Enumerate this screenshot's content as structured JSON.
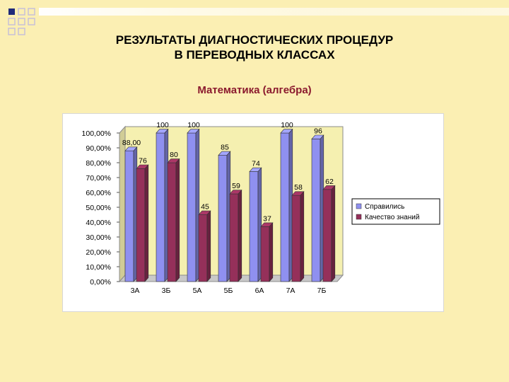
{
  "title_line1": "РЕЗУЛЬТАТЫ   ДИАГНОСТИЧЕСКИХ   ПРОЦЕДУР",
  "title_line2": "В ПЕРЕВОДНЫХ КЛАССАХ",
  "subtitle": "Математика (алгебра)",
  "colors": {
    "background": "#fbefb3",
    "plot_area": "#f5f0b0",
    "series1": "#8f90f0",
    "series2": "#95305a",
    "subtitle": "#8b1a2e",
    "corner_squares": "#1f2a7a"
  },
  "chart_data": {
    "type": "bar",
    "categories": [
      "3А",
      "3Б",
      "5А",
      "5Б",
      "6А",
      "7А",
      "7Б"
    ],
    "series": [
      {
        "name": "Справились",
        "values": [
          88,
          100,
          100,
          85,
          74,
          100,
          96
        ],
        "labels": [
          "88,00",
          "100",
          "100",
          "85",
          "74",
          "100",
          "96"
        ]
      },
      {
        "name": "Качество знаний",
        "values": [
          76,
          80,
          45,
          59,
          37,
          58,
          62
        ],
        "labels": [
          "76",
          "80",
          "45",
          "59",
          "37",
          "58",
          "62"
        ]
      }
    ],
    "y_ticks": [
      "0,00%",
      "10,00%",
      "20,00%",
      "30,00%",
      "40,00%",
      "50,00%",
      "60,00%",
      "70,00%",
      "80,00%",
      "90,00%",
      "100,00%"
    ],
    "ylim": [
      0,
      100
    ],
    "grid": false,
    "legend": "right",
    "style": "3d-bar"
  }
}
